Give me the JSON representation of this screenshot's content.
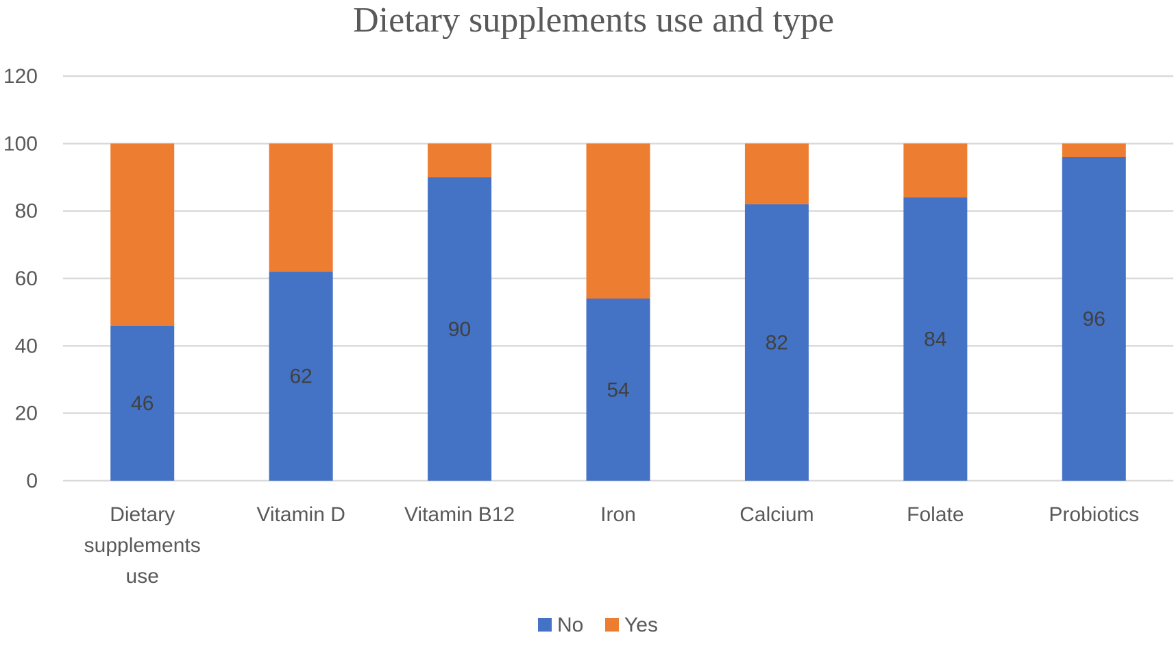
{
  "chart_data": {
    "type": "bar",
    "stacked": true,
    "title": "Dietary supplements use and type",
    "xlabel": "",
    "ylabel": "",
    "ylim": [
      0,
      120
    ],
    "yticks": [
      0,
      20,
      40,
      60,
      80,
      100,
      120
    ],
    "grid": true,
    "legend_position": "bottom",
    "categories": [
      [
        "Dietary",
        "supplements",
        "use"
      ],
      [
        "Vitamin D"
      ],
      [
        "Vitamin B12"
      ],
      [
        "Iron"
      ],
      [
        "Calcium"
      ],
      [
        "Folate"
      ],
      [
        "Probiotics"
      ]
    ],
    "series": [
      {
        "name": "No",
        "color": "#4472C4",
        "values": [
          46,
          62,
          90,
          54,
          82,
          84,
          96
        ],
        "show_labels": true
      },
      {
        "name": "Yes",
        "color": "#ED7D31",
        "values": [
          54,
          38,
          10,
          46,
          18,
          16,
          4
        ],
        "show_labels": false
      }
    ]
  }
}
